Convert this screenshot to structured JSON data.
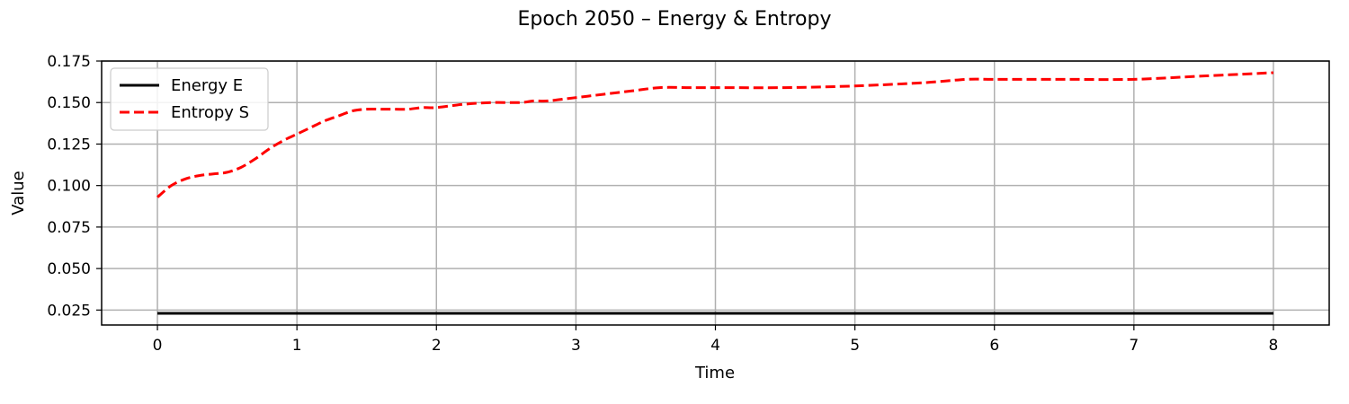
{
  "chart_data": {
    "type": "line",
    "title": "Epoch 2050 – Energy & Entropy",
    "xlabel": "Time",
    "ylabel": "Value",
    "xlim": [
      -0.4,
      8.4
    ],
    "ylim": [
      0.016,
      0.175
    ],
    "xticks": [
      0,
      1,
      2,
      3,
      4,
      5,
      6,
      7,
      8
    ],
    "xtick_labels": [
      "0",
      "1",
      "2",
      "3",
      "4",
      "5",
      "6",
      "7",
      "8"
    ],
    "yticks": [
      0.025,
      0.05,
      0.075,
      0.1,
      0.125,
      0.15,
      0.175
    ],
    "ytick_labels": [
      "0.025",
      "0.050",
      "0.075",
      "0.100",
      "0.125",
      "0.150",
      "0.175"
    ],
    "grid": true,
    "legend_position": "top-left",
    "series": [
      {
        "name": "Energy E",
        "color": "#000000",
        "style": "solid",
        "x": [
          0,
          1,
          2,
          3,
          4,
          5,
          6,
          7,
          8
        ],
        "y": [
          0.023,
          0.023,
          0.023,
          0.023,
          0.023,
          0.023,
          0.023,
          0.023,
          0.023
        ]
      },
      {
        "name": "Entropy S",
        "color": "#ff0000",
        "style": "dashed",
        "x": [
          0,
          0.1,
          0.2,
          0.3,
          0.4,
          0.5,
          0.6,
          0.7,
          0.8,
          0.9,
          1.0,
          1.1,
          1.2,
          1.3,
          1.4,
          1.5,
          1.6,
          1.7,
          1.8,
          1.9,
          2.0,
          2.2,
          2.4,
          2.6,
          2.7,
          2.8,
          3.0,
          3.2,
          3.4,
          3.6,
          3.8,
          4.0,
          4.5,
          5.0,
          5.5,
          5.8,
          6.0,
          6.5,
          7.0,
          7.5,
          8.0
        ],
        "y": [
          0.093,
          0.1,
          0.104,
          0.106,
          0.107,
          0.108,
          0.111,
          0.116,
          0.122,
          0.127,
          0.131,
          0.135,
          0.139,
          0.142,
          0.145,
          0.146,
          0.146,
          0.146,
          0.146,
          0.147,
          0.147,
          0.149,
          0.15,
          0.15,
          0.151,
          0.151,
          0.153,
          0.155,
          0.157,
          0.159,
          0.159,
          0.159,
          0.159,
          0.16,
          0.162,
          0.164,
          0.164,
          0.164,
          0.164,
          0.166,
          0.168
        ]
      }
    ]
  }
}
